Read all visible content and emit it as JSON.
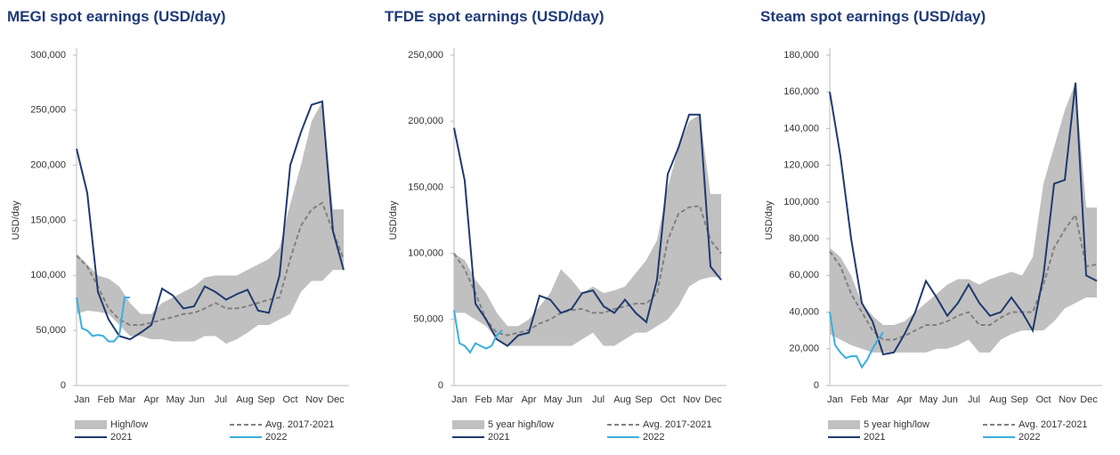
{
  "chart_data": [
    {
      "type": "line",
      "title": "MEGI spot earnings (USD/day)",
      "y_label": "USD/day",
      "x": [
        1,
        3,
        5,
        7,
        9,
        11,
        13,
        15,
        17,
        19,
        21,
        23,
        25,
        27,
        29,
        31,
        33,
        35,
        37,
        39,
        41,
        43,
        45,
        47,
        49,
        51
      ],
      "xlim": [
        1,
        52
      ],
      "xticks": [
        {
          "value": 2,
          "label": "Jan"
        },
        {
          "value": 6.5,
          "label": "Feb"
        },
        {
          "value": 10.5,
          "label": "Mar"
        },
        {
          "value": 15,
          "label": "Apr"
        },
        {
          "value": 19.5,
          "label": "May"
        },
        {
          "value": 23.5,
          "label": "Jun"
        },
        {
          "value": 28,
          "label": "Jul"
        },
        {
          "value": 32.5,
          "label": "Aug"
        },
        {
          "value": 36.5,
          "label": "Sep"
        },
        {
          "value": 41,
          "label": "Oct"
        },
        {
          "value": 45.5,
          "label": "Nov"
        },
        {
          "value": 49.5,
          "label": "Dec"
        }
      ],
      "ylim": [
        0,
        300000
      ],
      "yticks": [
        0,
        {
          "value": 50000,
          "label": "50,000"
        },
        {
          "value": 100000,
          "label": "100,000"
        },
        {
          "value": 150000,
          "label": "150,000"
        },
        {
          "value": 200000,
          "label": "200,000"
        },
        {
          "value": 250000,
          "label": "250,000"
        },
        {
          "value": 300000,
          "label": "300,000"
        }
      ],
      "series": [
        {
          "name": "High/low",
          "color": "#c0c0c0",
          "style": "band",
          "high": [
            120000,
            110000,
            100000,
            97000,
            90000,
            75000,
            65000,
            65000,
            75000,
            80000,
            85000,
            90000,
            98000,
            100000,
            100000,
            100000,
            105000,
            110000,
            115000,
            125000,
            165000,
            200000,
            240000,
            258000,
            160000,
            160000
          ],
          "low": [
            65000,
            68000,
            67000,
            65000,
            55000,
            45000,
            45000,
            42000,
            42000,
            40000,
            40000,
            40000,
            45000,
            45000,
            38000,
            42000,
            48000,
            55000,
            55000,
            60000,
            65000,
            85000,
            95000,
            95000,
            105000,
            105000
          ]
        },
        {
          "name": "Avg. 2017-2021",
          "color": "#808080",
          "style": "dashed",
          "values": [
            118000,
            108000,
            90000,
            70000,
            60000,
            55000,
            55000,
            57000,
            60000,
            62000,
            65000,
            66000,
            70000,
            75000,
            70000,
            70000,
            72000,
            75000,
            78000,
            80000,
            115000,
            145000,
            160000,
            166000,
            140000,
            115000
          ]
        },
        {
          "name": "2021",
          "color": "#1f3a6e",
          "style": "solid",
          "values": [
            215000,
            175000,
            85000,
            60000,
            45000,
            42000,
            48000,
            55000,
            88000,
            82000,
            70000,
            72000,
            90000,
            85000,
            78000,
            83000,
            87000,
            68000,
            66000,
            100000,
            200000,
            230000,
            255000,
            258000,
            140000,
            105000
          ]
        },
        {
          "name": "2022",
          "color": "#3aaedf",
          "style": "solid",
          "x": [
            1,
            2,
            3,
            4,
            5,
            6,
            7,
            8,
            9,
            10,
            11
          ],
          "values": [
            80000,
            52000,
            50000,
            45000,
            46000,
            45000,
            40000,
            40000,
            46000,
            80000,
            80000
          ]
        }
      ]
    },
    {
      "type": "line",
      "title": "TFDE spot earnings (USD/day)",
      "y_label": "USD/day",
      "x": [
        1,
        3,
        5,
        7,
        9,
        11,
        13,
        15,
        17,
        19,
        21,
        23,
        25,
        27,
        29,
        31,
        33,
        35,
        37,
        39,
        41,
        43,
        45,
        47,
        49,
        51
      ],
      "xlim": [
        1,
        52
      ],
      "xticks": [
        {
          "value": 2,
          "label": "Jan"
        },
        {
          "value": 6.5,
          "label": "Feb"
        },
        {
          "value": 10.5,
          "label": "Mar"
        },
        {
          "value": 15,
          "label": "Apr"
        },
        {
          "value": 19.5,
          "label": "May"
        },
        {
          "value": 23.5,
          "label": "Jun"
        },
        {
          "value": 28,
          "label": "Jul"
        },
        {
          "value": 32.5,
          "label": "Aug"
        },
        {
          "value": 36.5,
          "label": "Sep"
        },
        {
          "value": 41,
          "label": "Oct"
        },
        {
          "value": 45.5,
          "label": "Nov"
        },
        {
          "value": 49.5,
          "label": "Dec"
        }
      ],
      "ylim": [
        0,
        250000
      ],
      "yticks": [
        0,
        {
          "value": 50000,
          "label": "50,000"
        },
        {
          "value": 100000,
          "label": "100,000"
        },
        {
          "value": 150000,
          "label": "150,000"
        },
        {
          "value": 200000,
          "label": "200,000"
        },
        {
          "value": 250000,
          "label": "250,000"
        }
      ],
      "series": [
        {
          "name": "5 year high/low",
          "color": "#c0c0c0",
          "style": "band",
          "high": [
            100000,
            95000,
            80000,
            70000,
            55000,
            45000,
            45000,
            50000,
            60000,
            70000,
            88000,
            80000,
            70000,
            75000,
            70000,
            72000,
            75000,
            85000,
            95000,
            110000,
            150000,
            180000,
            200000,
            205000,
            145000,
            145000
          ],
          "low": [
            55000,
            55000,
            50000,
            45000,
            35000,
            30000,
            30000,
            30000,
            30000,
            30000,
            30000,
            30000,
            35000,
            40000,
            30000,
            30000,
            35000,
            40000,
            40000,
            45000,
            50000,
            60000,
            75000,
            80000,
            82000,
            82000
          ]
        },
        {
          "name": "Avg. 2017-2021",
          "color": "#808080",
          "style": "dashed",
          "values": [
            100000,
            88000,
            70000,
            50000,
            40000,
            38000,
            40000,
            42000,
            47000,
            50000,
            55000,
            57000,
            58000,
            55000,
            55000,
            58000,
            60000,
            62000,
            62000,
            70000,
            110000,
            130000,
            135000,
            136000,
            110000,
            100000
          ]
        },
        {
          "name": "2021",
          "color": "#1f3a6e",
          "style": "solid",
          "values": [
            195000,
            155000,
            62000,
            50000,
            35000,
            30000,
            38000,
            40000,
            68000,
            65000,
            55000,
            58000,
            70000,
            72000,
            60000,
            55000,
            65000,
            55000,
            48000,
            80000,
            160000,
            180000,
            205000,
            205000,
            90000,
            80000
          ]
        },
        {
          "name": "2022",
          "color": "#3aaedf",
          "style": "solid",
          "x": [
            1,
            2,
            3,
            4,
            5,
            6,
            7,
            8,
            9,
            10
          ],
          "values": [
            57000,
            32000,
            30000,
            25000,
            32000,
            30000,
            28000,
            30000,
            38000,
            42000
          ]
        }
      ]
    },
    {
      "type": "line",
      "title": "Steam spot earnings (USD/day)",
      "y_label": "USD/day",
      "x": [
        1,
        3,
        5,
        7,
        9,
        11,
        13,
        15,
        17,
        19,
        21,
        23,
        25,
        27,
        29,
        31,
        33,
        35,
        37,
        39,
        41,
        43,
        45,
        47,
        49,
        51
      ],
      "xlim": [
        1,
        52
      ],
      "xticks": [
        {
          "value": 2,
          "label": "Jan"
        },
        {
          "value": 6.5,
          "label": "Feb"
        },
        {
          "value": 10.5,
          "label": "Mar"
        },
        {
          "value": 15,
          "label": "Apr"
        },
        {
          "value": 19.5,
          "label": "May"
        },
        {
          "value": 23.5,
          "label": "Jun"
        },
        {
          "value": 28,
          "label": "Jul"
        },
        {
          "value": 32.5,
          "label": "Aug"
        },
        {
          "value": 36.5,
          "label": "Sep"
        },
        {
          "value": 41,
          "label": "Oct"
        },
        {
          "value": 45.5,
          "label": "Nov"
        },
        {
          "value": 49.5,
          "label": "Dec"
        }
      ],
      "ylim": [
        0,
        180000
      ],
      "yticks": [
        0,
        {
          "value": 20000,
          "label": "20,000"
        },
        {
          "value": 40000,
          "label": "40,000"
        },
        {
          "value": 60000,
          "label": "60,000"
        },
        {
          "value": 80000,
          "label": "80,000"
        },
        {
          "value": 100000,
          "label": "100,000"
        },
        {
          "value": 120000,
          "label": "120,000"
        },
        {
          "value": 140000,
          "label": "140,000"
        },
        {
          "value": 160000,
          "label": "160,000"
        },
        {
          "value": 180000,
          "label": "180,000"
        }
      ],
      "series": [
        {
          "name": "5 year high/low",
          "color": "#c0c0c0",
          "style": "band",
          "high": [
            75000,
            70000,
            60000,
            45000,
            38000,
            33000,
            33000,
            35000,
            40000,
            45000,
            50000,
            55000,
            58000,
            58000,
            55000,
            58000,
            60000,
            62000,
            60000,
            70000,
            110000,
            130000,
            150000,
            165000,
            97000,
            97000
          ],
          "low": [
            28000,
            25000,
            22000,
            20000,
            18000,
            18000,
            18000,
            18000,
            18000,
            18000,
            20000,
            20000,
            22000,
            25000,
            18000,
            18000,
            25000,
            28000,
            30000,
            30000,
            30000,
            35000,
            42000,
            45000,
            48000,
            48000
          ]
        },
        {
          "name": "Avg. 2017-2021",
          "color": "#808080",
          "style": "dashed",
          "values": [
            73000,
            65000,
            50000,
            40000,
            30000,
            25000,
            25000,
            27000,
            30000,
            33000,
            33000,
            35000,
            38000,
            40000,
            33000,
            33000,
            37000,
            40000,
            40000,
            40000,
            55000,
            75000,
            85000,
            93000,
            65000,
            66000
          ]
        },
        {
          "name": "2021",
          "color": "#1f3a6e",
          "style": "solid",
          "values": [
            160000,
            125000,
            80000,
            45000,
            35000,
            17000,
            18000,
            28000,
            40000,
            57000,
            48000,
            38000,
            45000,
            55000,
            45000,
            38000,
            40000,
            48000,
            40000,
            30000,
            60000,
            110000,
            112000,
            165000,
            60000,
            57000
          ]
        },
        {
          "name": "2022",
          "color": "#3aaedf",
          "style": "solid",
          "x": [
            1,
            2,
            3,
            4,
            5,
            6,
            7,
            8,
            9,
            10,
            11
          ],
          "values": [
            40000,
            22000,
            18000,
            15000,
            16000,
            16000,
            10000,
            14000,
            20000,
            25000,
            29000
          ]
        }
      ]
    }
  ]
}
